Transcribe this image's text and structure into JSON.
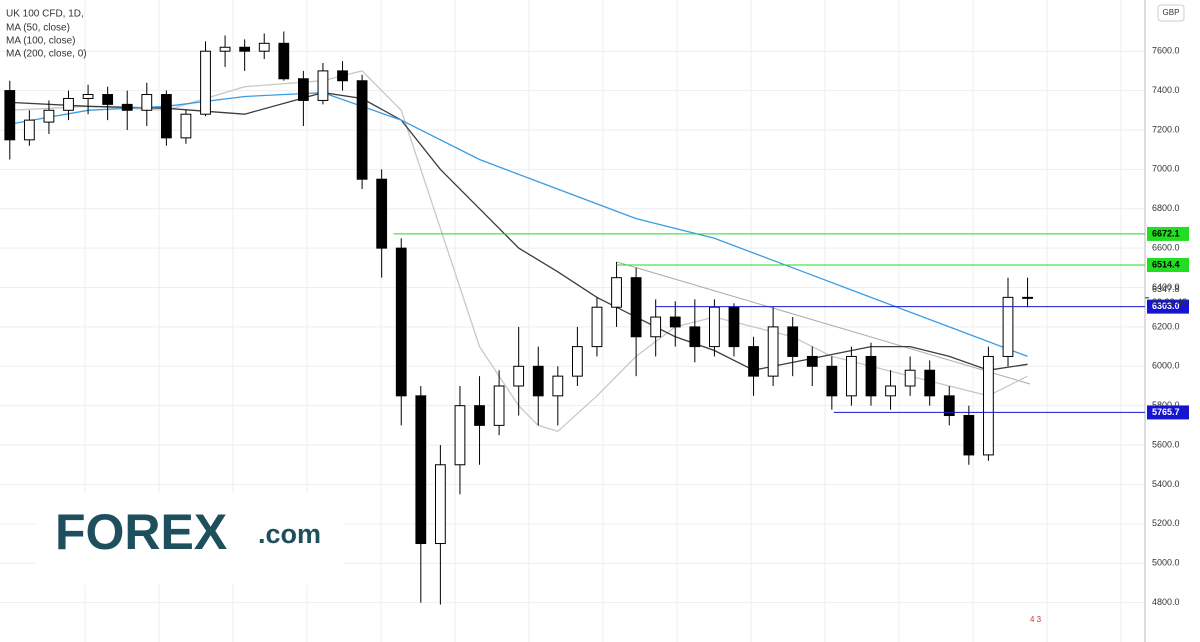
{
  "chart_data": {
    "type": "candlestick",
    "title": "UK 100 CFD, 1D,",
    "currency": "GBP",
    "x": [
      0,
      1,
      2,
      3,
      4,
      5,
      6,
      7,
      8,
      9,
      10,
      11,
      12,
      13,
      14,
      15,
      16,
      17,
      18,
      19,
      20,
      21,
      22,
      23,
      24,
      25,
      26,
      27,
      28,
      29,
      30,
      31,
      32,
      33,
      34,
      35,
      36,
      37,
      38,
      39,
      40,
      41,
      42,
      43,
      44,
      45,
      46,
      47,
      48,
      49,
      50,
      51,
      52
    ],
    "open": [
      7400,
      7150,
      7240,
      7300,
      7360,
      7380,
      7330,
      7300,
      7380,
      7160,
      7280,
      7600,
      7620,
      7600,
      7640,
      7460,
      7350,
      7500,
      7450,
      6950,
      6600,
      5850,
      5100,
      5500,
      5800,
      5700,
      5900,
      6000,
      5850,
      5950,
      6100,
      6300,
      6450,
      6150,
      6250,
      6200,
      6100,
      6300,
      6100,
      5950,
      6200,
      6050,
      6000,
      5850,
      6050,
      5850,
      5900,
      5980,
      5850,
      5750,
      5550,
      6050,
      6350
    ],
    "high": [
      7450,
      7300,
      7350,
      7400,
      7430,
      7420,
      7400,
      7440,
      7400,
      7300,
      7650,
      7680,
      7660,
      7690,
      7700,
      7500,
      7540,
      7550,
      7480,
      7000,
      6650,
      5900,
      5600,
      5900,
      5950,
      5980,
      6200,
      6100,
      6000,
      6200,
      6350,
      6530,
      6500,
      6340,
      6330,
      6340,
      6340,
      6320,
      6150,
      6300,
      6250,
      6100,
      6050,
      6100,
      6120,
      5980,
      6050,
      6030,
      5900,
      5800,
      6100,
      6450,
      6450
    ],
    "low": [
      7050,
      7120,
      7180,
      7250,
      7280,
      7250,
      7200,
      7220,
      7120,
      7130,
      7270,
      7520,
      7500,
      7560,
      7450,
      7220,
      7330,
      7400,
      6900,
      6450,
      5700,
      4800,
      4790,
      5350,
      5500,
      5650,
      5750,
      5700,
      5700,
      5900,
      6050,
      6200,
      5950,
      6050,
      6100,
      6020,
      6050,
      6050,
      5850,
      5900,
      5950,
      5900,
      5780,
      5800,
      5800,
      5780,
      5850,
      5800,
      5700,
      5500,
      5520,
      6000,
      6300
    ],
    "close": [
      7150,
      7250,
      7300,
      7360,
      7380,
      7330,
      7300,
      7380,
      7160,
      7280,
      7600,
      7620,
      7600,
      7640,
      7460,
      7350,
      7500,
      7450,
      6950,
      6600,
      5850,
      5100,
      5500,
      5800,
      5700,
      5900,
      6000,
      5850,
      5950,
      6100,
      6300,
      6450,
      6150,
      6250,
      6200,
      6100,
      6300,
      6100,
      5950,
      6200,
      6050,
      6000,
      5850,
      6050,
      5850,
      5900,
      5980,
      5850,
      5750,
      5550,
      6050,
      6350,
      6347.8
    ],
    "overlays": [
      {
        "name": "MA (50, close)",
        "color": "#c8c8c8",
        "x": [
          0,
          4,
          8,
          12,
          16,
          18,
          20,
          22,
          24,
          26,
          27,
          28,
          30,
          32,
          34,
          36,
          38,
          40,
          42,
          44,
          46,
          48,
          50,
          52
        ],
        "values": [
          7300,
          7320,
          7300,
          7420,
          7450,
          7500,
          7300,
          6700,
          6100,
          5800,
          5700,
          5670,
          5850,
          6050,
          6200,
          6250,
          6200,
          6150,
          6050,
          6000,
          5950,
          5900,
          5850,
          5950
        ]
      },
      {
        "name": "MA (100, close)",
        "color": "#3c3c3c",
        "x": [
          0,
          4,
          8,
          12,
          16,
          18,
          20,
          22,
          24,
          26,
          28,
          30,
          32,
          34,
          36,
          38,
          40,
          42,
          44,
          46,
          48,
          50,
          52
        ],
        "values": [
          7340,
          7320,
          7310,
          7280,
          7390,
          7360,
          7250,
          7000,
          6800,
          6600,
          6480,
          6350,
          6250,
          6150,
          6080,
          5980,
          6020,
          6060,
          6100,
          6100,
          6050,
          5980,
          6010
        ]
      },
      {
        "name": "MA (200, close, 0)",
        "color": "#3a9ce4",
        "x": [
          0,
          4,
          8,
          12,
          16,
          20,
          24,
          28,
          32,
          36,
          40,
          44,
          48,
          52
        ],
        "values": [
          7230,
          7300,
          7320,
          7370,
          7390,
          7250,
          7050,
          6900,
          6750,
          6650,
          6500,
          6350,
          6200,
          6050
        ]
      }
    ],
    "levels": [
      {
        "value": 6672.1,
        "label": "6672.1",
        "color": "#22dd22",
        "x": 19.6
      },
      {
        "value": 6514.4,
        "label": "6514.4",
        "color": "#22dd22",
        "x": 31
      },
      {
        "value": 6303.0,
        "label": "6303.0",
        "color": "#1515d0",
        "x": 33
      },
      {
        "value": 5765.7,
        "label": "5765.7",
        "color": "#1515d0",
        "x": 42.1
      }
    ],
    "last_price": {
      "value": 6347.8,
      "label": "6347.8"
    },
    "countdown": "03:22:48",
    "xlim": [
      -0.5,
      58
    ],
    "ylim": [
      4600,
      7860
    ],
    "yticks": [
      {
        "value": 4800,
        "label": "4800.0"
      },
      {
        "value": 5000,
        "label": "5000.0"
      },
      {
        "value": 5200,
        "label": "5200.0"
      },
      {
        "value": 5400,
        "label": "5400.0"
      },
      {
        "value": 5600,
        "label": "5600.0"
      },
      {
        "value": 5800,
        "label": "5800.0"
      },
      {
        "value": 6000,
        "label": "6000.0"
      },
      {
        "value": 6200,
        "label": "6200.0"
      },
      {
        "value": 6400,
        "label": "6400.0"
      },
      {
        "value": 6600,
        "label": "6600.0"
      },
      {
        "value": 6800,
        "label": "6800.0"
      },
      {
        "value": 7000,
        "label": "7000.0"
      },
      {
        "value": 7200,
        "label": "7200.0"
      },
      {
        "value": 7400,
        "label": "7400.0"
      },
      {
        "value": 7600,
        "label": "7600.0"
      }
    ],
    "grid": true
  },
  "logo": {
    "brand": "FOREX",
    ".com": ".com"
  },
  "badge": "4 3"
}
